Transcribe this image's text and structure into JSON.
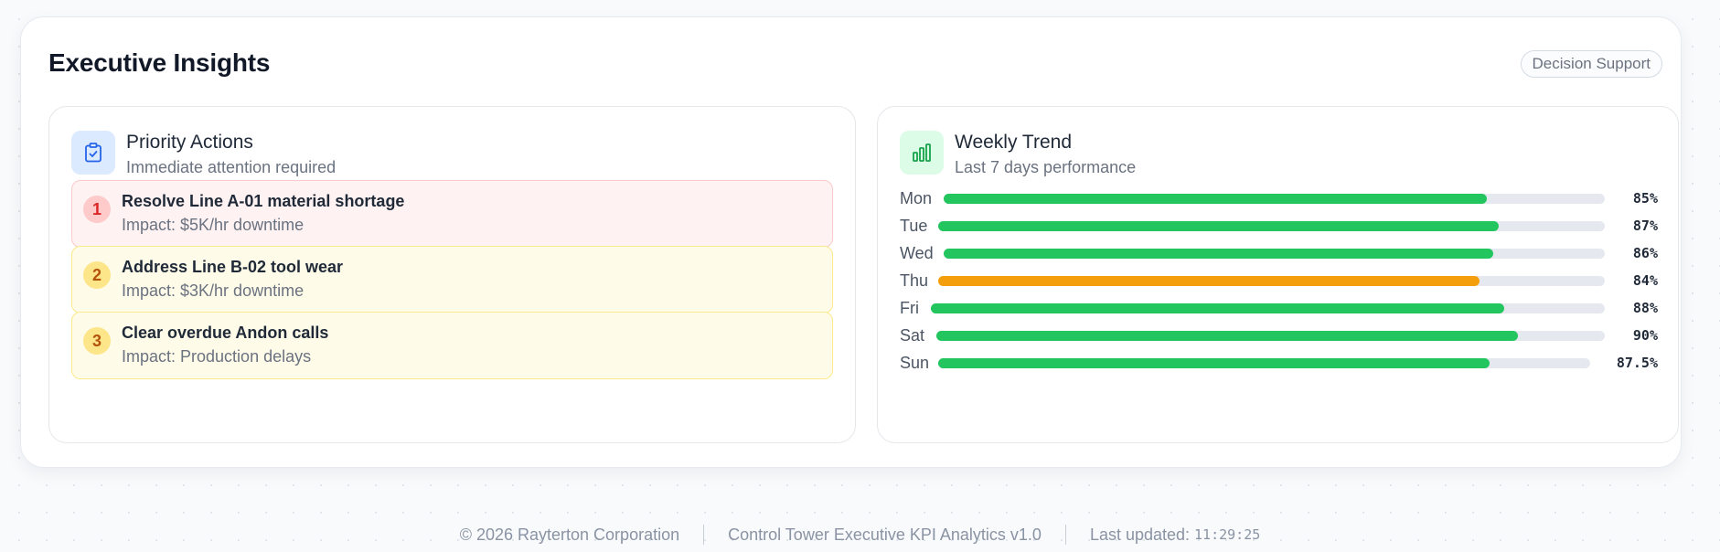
{
  "insights": {
    "title": "Executive Insights",
    "badge": "Decision Support"
  },
  "priority": {
    "title": "Priority Actions",
    "subtitle": "Immediate attention required",
    "icon": "clipboard-check-icon",
    "items": [
      {
        "num": "1",
        "title": "Resolve Line A-01 material shortage",
        "impact": "Impact: $5K/hr downtime",
        "severity": "red"
      },
      {
        "num": "2",
        "title": "Address Line B-02 tool wear",
        "impact": "Impact: $3K/hr downtime",
        "severity": "yellow"
      },
      {
        "num": "3",
        "title": "Clear overdue Andon calls",
        "impact": "Impact: Production delays",
        "severity": "yellow"
      }
    ]
  },
  "trend": {
    "title": "Weekly Trend",
    "subtitle": "Last 7 days performance",
    "icon": "bar-chart-icon",
    "colors": {
      "good": "#22c55e",
      "warn": "#f59e0b",
      "track": "#e5e9ef"
    },
    "days": [
      {
        "day": "Mon",
        "value": 85,
        "label": "85%",
        "status": "good"
      },
      {
        "day": "Tue",
        "value": 87,
        "label": "87%",
        "status": "good"
      },
      {
        "day": "Wed",
        "value": 86,
        "label": "86%",
        "status": "good"
      },
      {
        "day": "Thu",
        "value": 84,
        "label": "84%",
        "status": "warn"
      },
      {
        "day": "Fri",
        "value": 88,
        "label": "88%",
        "status": "good"
      },
      {
        "day": "Sat",
        "value": 90,
        "label": "90%",
        "status": "good"
      },
      {
        "day": "Sun",
        "value": 87.5,
        "label": "87.5%",
        "status": "good"
      }
    ]
  },
  "footer": {
    "copyright": "© 2026 Rayterton Corporation",
    "product": "Control Tower Executive KPI Analytics v1.0",
    "updated_label": "Last updated:",
    "updated_time": "11:29:25"
  }
}
